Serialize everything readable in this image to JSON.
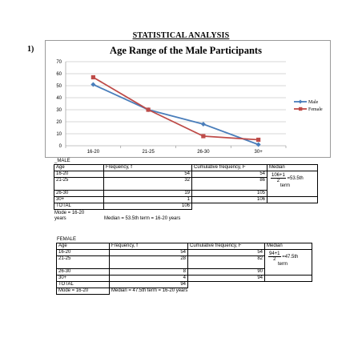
{
  "heading": "STATISTICAL ANALYSIS",
  "question_number": "1)",
  "chart_data": {
    "type": "line",
    "title": "Age Range of the Male Participants",
    "categories": [
      "16-20",
      "21-25",
      "26-30",
      "30+"
    ],
    "ylim": [
      0,
      70
    ],
    "yticks": [
      "0",
      "10",
      "20",
      "30",
      "40",
      "50",
      "60",
      "70"
    ],
    "grid": true,
    "legend_position": "right",
    "series": [
      {
        "name": "Male",
        "values": [
          51,
          30,
          18,
          1
        ],
        "color": "#4a7ebb"
      },
      {
        "name": "Female",
        "values": [
          57,
          30,
          8,
          5
        ],
        "color": "#be4b48"
      }
    ]
  },
  "male_table": {
    "label": "_MALE",
    "headers": [
      "Age",
      "Frequency, f",
      "Cumulative frequency, F",
      "Median"
    ],
    "rows": [
      {
        "age": "16-20",
        "f": "54",
        "cf": "54"
      },
      {
        "age": "21-25",
        "f": "32",
        "cf": "86"
      },
      {
        "age": "26-30",
        "f": "19",
        "cf": "105"
      },
      {
        "age": "30+",
        "f": "1",
        "cf": "106"
      }
    ],
    "total_label": "TOTAL",
    "total": "106",
    "median_num": "106+1",
    "median_den": "2",
    "median_eq": "=53.5th",
    "median_term": "term",
    "mode_line1": "Mode = 16-20",
    "mode_line2": "years",
    "median_note": "Median = 53.5th term = 16-20 years"
  },
  "female_table": {
    "label": "FEMALE",
    "headers": [
      "Age",
      "Frequency, f",
      "Cumulative frequency, F",
      "Median"
    ],
    "rows": [
      {
        "age": "16-20",
        "f": "54",
        "cf": "54"
      },
      {
        "age": "21-25",
        "f": "28",
        "cf": "82"
      },
      {
        "age": "26-30",
        "f": "8",
        "cf": "90"
      },
      {
        "age": "30+",
        "f": "4",
        "cf": "94"
      }
    ],
    "total_label": "TOTAL",
    "total": "94",
    "median_num": "94+1",
    "median_den": "2",
    "median_eq": "=47.5th",
    "median_term": "term",
    "mode": "Mode = 16-20",
    "median_note": "Median = 47.5th term = 16-20 years"
  }
}
